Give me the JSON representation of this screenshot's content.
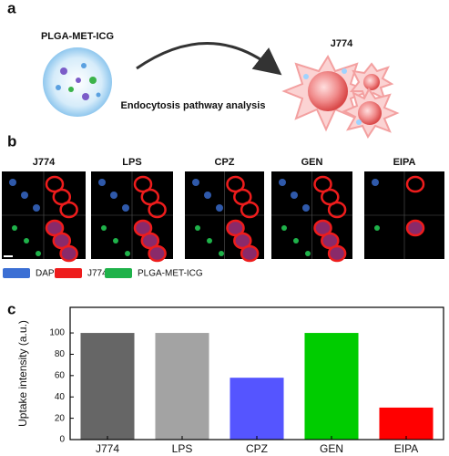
{
  "panel_a": {
    "label": "a",
    "carrier": "PLGA-MET-ICG",
    "cell": "J774",
    "caption": "Endocytosis pathway analysis"
  },
  "panel_b": {
    "label": "b",
    "conditions": [
      "J774",
      "LPS",
      "CPZ",
      "GEN",
      "EIPA"
    ],
    "legend": [
      {
        "name": "DAPI",
        "color": "#3b6fd4"
      },
      {
        "name": "J774",
        "color": "#ee1c1c"
      },
      {
        "name": "PLGA-MET-ICG",
        "color": "#1fb24a"
      }
    ]
  },
  "panel_c_label": "c",
  "chart_data": {
    "type": "bar",
    "ylabel": "Uptake intensity (a.u.)",
    "categories": [
      "J774",
      "LPS",
      "CPZ",
      "GEN",
      "EIPA"
    ],
    "values": [
      100,
      100,
      58,
      100,
      30
    ],
    "colors": [
      "#666666",
      "#a3a3a3",
      "#5555ff",
      "#00cc00",
      "#ff0000"
    ],
    "ylim": [
      0,
      124
    ],
    "yticks": [
      0,
      20,
      40,
      60,
      80,
      100
    ]
  }
}
